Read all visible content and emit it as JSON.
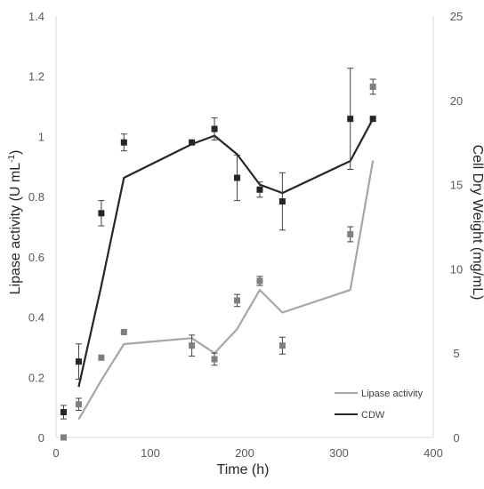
{
  "chart_data": {
    "type": "line",
    "xlabel": "Time (h)",
    "ylabel_left": {
      "main": "Lipase activity (U mL",
      "sup": "-1",
      "end": ")"
    },
    "ylabel_right": "Cell Dry Weight (mg/mL)",
    "x_ticks": [
      "0",
      "100",
      "200",
      "300",
      "400"
    ],
    "y_left_ticks": [
      "0",
      "0.2",
      "0.4",
      "0.6",
      "0.8",
      "1",
      "1.2",
      "1.4"
    ],
    "y_right_ticks": [
      "0",
      "5",
      "10",
      "15",
      "20",
      "25"
    ],
    "xlim": [
      0,
      400
    ],
    "ylim_left": [
      0,
      1.4
    ],
    "ylim_right": [
      0,
      25
    ],
    "legend_position": "bottom-right",
    "grid": false,
    "series": [
      {
        "name": "Lipase activity",
        "axis": "left",
        "color": "#a6a6a6",
        "marker_color": "#7f7f7f",
        "line": {
          "x": [
            24,
            48,
            72,
            144,
            168,
            192,
            216,
            240,
            312,
            336
          ],
          "y": [
            0.06,
            0.19,
            0.31,
            0.33,
            0.28,
            0.36,
            0.49,
            0.415,
            0.49,
            0.92
          ]
        },
        "points": [
          {
            "x": 8,
            "y": 0.0,
            "err": 0
          },
          {
            "x": 24,
            "y": 0.11,
            "err": 0.02
          },
          {
            "x": 48,
            "y": 0.265,
            "err": 0
          },
          {
            "x": 72,
            "y": 0.35,
            "err": 0
          },
          {
            "x": 144,
            "y": 0.305,
            "err": 0.035
          },
          {
            "x": 168,
            "y": 0.26,
            "err": 0.02
          },
          {
            "x": 192,
            "y": 0.455,
            "err": 0.02
          },
          {
            "x": 216,
            "y": 0.52,
            "err": 0.015
          },
          {
            "x": 240,
            "y": 0.305,
            "err": 0.028
          },
          {
            "x": 312,
            "y": 0.675,
            "err": 0.025
          },
          {
            "x": 336,
            "y": 1.165,
            "err": 0.025
          }
        ]
      },
      {
        "name": "CDW",
        "axis": "right",
        "color": "#262626",
        "marker_color": "#262626",
        "line": {
          "x": [
            24,
            48,
            72,
            144,
            168,
            192,
            216,
            240,
            312,
            336
          ],
          "y": [
            3.0,
            9.0,
            15.4,
            17.4,
            17.9,
            16.8,
            15.0,
            14.5,
            16.4,
            18.9
          ]
        },
        "points": [
          {
            "x": 8,
            "y": 1.5,
            "err": 0.4
          },
          {
            "x": 24,
            "y": 4.5,
            "err": 1.05
          },
          {
            "x": 48,
            "y": 13.3,
            "err": 0.75
          },
          {
            "x": 72,
            "y": 17.5,
            "err": 0.5
          },
          {
            "x": 144,
            "y": 17.5,
            "err": 0
          },
          {
            "x": 168,
            "y": 18.3,
            "err": 0.65
          },
          {
            "x": 192,
            "y": 15.4,
            "err": 1.35
          },
          {
            "x": 216,
            "y": 14.7,
            "err": 0.45
          },
          {
            "x": 240,
            "y": 14.0,
            "err": 1.7
          },
          {
            "x": 312,
            "y": 18.9,
            "err": 3.0
          },
          {
            "x": 336,
            "y": 18.9,
            "err": 0
          }
        ]
      }
    ]
  }
}
